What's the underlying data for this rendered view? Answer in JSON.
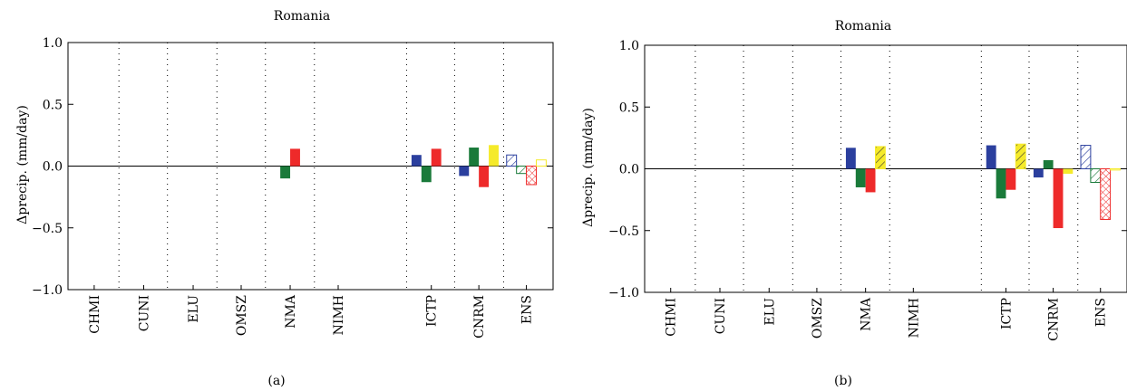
{
  "colors": {
    "blue": "#2b3f9e",
    "green": "#1a7a3a",
    "red": "#ee2a2a",
    "yellow": "#f5ea2a"
  },
  "chart_data": [
    {
      "type": "bar",
      "title": "Romania",
      "ylabel": "Δprecip. (mm/day)",
      "panel_label": "(a)",
      "ylim": [
        -1.0,
        1.0
      ],
      "yticks": [
        1.0,
        0.5,
        0.0,
        -0.5,
        -1.0
      ],
      "ytick_labels": [
        "1.0",
        "0.5",
        "0.0",
        "−0.5",
        "−1.0"
      ],
      "categories": [
        "CHMI",
        "CUNI",
        "ELU",
        "OMSZ",
        "NMA",
        "NIMH",
        "ICTP",
        "CNRM",
        "ENS"
      ],
      "bars": [
        {
          "category": "NMA",
          "slot": 1,
          "color": "green",
          "hatch": "none",
          "value": -0.1
        },
        {
          "category": "NMA",
          "slot": 2,
          "color": "red",
          "hatch": "none",
          "value": 0.14
        },
        {
          "category": "ICTP",
          "slot": 0,
          "color": "blue",
          "hatch": "none",
          "value": 0.09
        },
        {
          "category": "ICTP",
          "slot": 1,
          "color": "green",
          "hatch": "none",
          "value": -0.13
        },
        {
          "category": "ICTP",
          "slot": 2,
          "color": "red",
          "hatch": "none",
          "value": 0.14
        },
        {
          "category": "CNRM",
          "slot": 0,
          "color": "blue",
          "hatch": "none",
          "value": -0.08
        },
        {
          "category": "CNRM",
          "slot": 1,
          "color": "green",
          "hatch": "none",
          "value": 0.15
        },
        {
          "category": "CNRM",
          "slot": 2,
          "color": "red",
          "hatch": "none",
          "value": -0.17
        },
        {
          "category": "CNRM",
          "slot": 3,
          "color": "yellow",
          "hatch": "none",
          "value": 0.17
        },
        {
          "category": "ENS",
          "slot": 0,
          "color": "blue",
          "hatch": "diag",
          "value": 0.09
        },
        {
          "category": "ENS",
          "slot": 1,
          "color": "green",
          "hatch": "diag",
          "value": -0.06
        },
        {
          "category": "ENS",
          "slot": 2,
          "color": "red",
          "hatch": "cross",
          "value": -0.15
        },
        {
          "category": "ENS",
          "slot": 3,
          "color": "yellow",
          "hatch": "none",
          "value": 0.05
        }
      ]
    },
    {
      "type": "bar",
      "title": "Romania",
      "ylabel": "Δprecip. (mm/day)",
      "panel_label": "(b)",
      "ylim": [
        -1.0,
        1.0
      ],
      "yticks": [
        1.0,
        0.5,
        0.0,
        -0.5,
        -1.0
      ],
      "ytick_labels": [
        "1.0",
        "0.5",
        "0.0",
        "−0.5",
        "−1.0"
      ],
      "categories": [
        "CHMI",
        "CUNI",
        "ELU",
        "OMSZ",
        "NMA",
        "NIMH",
        "ICTP",
        "CNRM",
        "ENS"
      ],
      "bars": [
        {
          "category": "NMA",
          "slot": 0,
          "color": "blue",
          "hatch": "none",
          "value": 0.17
        },
        {
          "category": "NMA",
          "slot": 1,
          "color": "green",
          "hatch": "none",
          "value": -0.15
        },
        {
          "category": "NMA",
          "slot": 2,
          "color": "red",
          "hatch": "none",
          "value": -0.19
        },
        {
          "category": "NMA",
          "slot": 3,
          "color": "yellow",
          "hatch": "diag",
          "value": 0.18
        },
        {
          "category": "ICTP",
          "slot": 0,
          "color": "blue",
          "hatch": "none",
          "value": 0.19
        },
        {
          "category": "ICTP",
          "slot": 1,
          "color": "green",
          "hatch": "none",
          "value": -0.24
        },
        {
          "category": "ICTP",
          "slot": 2,
          "color": "red",
          "hatch": "none",
          "value": -0.17
        },
        {
          "category": "ICTP",
          "slot": 3,
          "color": "yellow",
          "hatch": "diag",
          "value": 0.2
        },
        {
          "category": "CNRM",
          "slot": 0,
          "color": "blue",
          "hatch": "none",
          "value": -0.07
        },
        {
          "category": "CNRM",
          "slot": 1,
          "color": "green",
          "hatch": "none",
          "value": 0.07
        },
        {
          "category": "CNRM",
          "slot": 2,
          "color": "red",
          "hatch": "none",
          "value": -0.48
        },
        {
          "category": "CNRM",
          "slot": 3,
          "color": "yellow",
          "hatch": "none",
          "value": -0.04
        },
        {
          "category": "ENS",
          "slot": 0,
          "color": "blue",
          "hatch": "diag",
          "value": 0.19
        },
        {
          "category": "ENS",
          "slot": 1,
          "color": "green",
          "hatch": "diag",
          "value": -0.11
        },
        {
          "category": "ENS",
          "slot": 2,
          "color": "red",
          "hatch": "cross",
          "value": -0.41
        },
        {
          "category": "ENS",
          "slot": 3,
          "color": "yellow",
          "hatch": "none",
          "value": -0.01
        }
      ]
    }
  ]
}
